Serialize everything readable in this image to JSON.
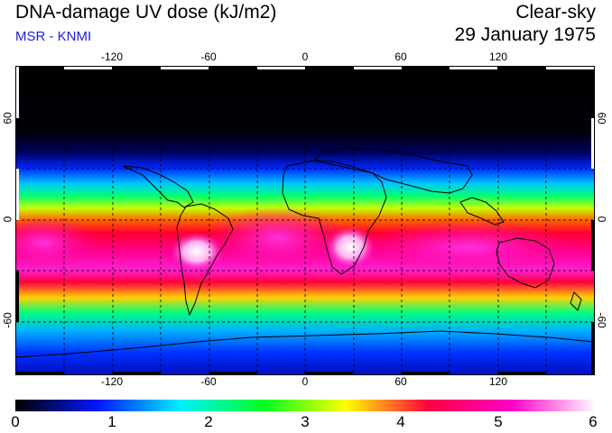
{
  "header": {
    "title": "DNA-damage UV dose (kJ/m2)",
    "subtitle": "MSR - KNMI",
    "condition": "Clear-sky",
    "date": "29 January 1975"
  },
  "map": {
    "longitude_labels": [
      "-120",
      "-60",
      "0",
      "60",
      "120"
    ],
    "latitude_labels": [
      "60",
      "0",
      "-60"
    ],
    "projection": "equirectangular",
    "gridline_style": "dashed",
    "field_bands": [
      {
        "region": "north polar night",
        "value_kJ_m2": 0
      },
      {
        "region": "northern mid-latitudes",
        "value_kJ_m2": 1.2
      },
      {
        "region": "northern subtropics",
        "value_kJ_m2": 2.7
      },
      {
        "region": "tropics",
        "value_kJ_m2": 4.2
      },
      {
        "region": "southern subtropics peak",
        "value_kJ_m2": 5.6
      },
      {
        "region": "southern mid-latitudes",
        "value_kJ_m2": 2.6
      },
      {
        "region": "southern high latitudes",
        "value_kJ_m2": 1.0
      }
    ]
  },
  "colorbar": {
    "labels": [
      "0",
      "1",
      "2",
      "3",
      "4",
      "5",
      "6"
    ],
    "min": 0,
    "max": 6,
    "colors": [
      "#000000",
      "#0018ff",
      "#00f0ff",
      "#00ff20",
      "#ffff00",
      "#ff0040",
      "#ff00c8",
      "#fff6ff"
    ]
  }
}
